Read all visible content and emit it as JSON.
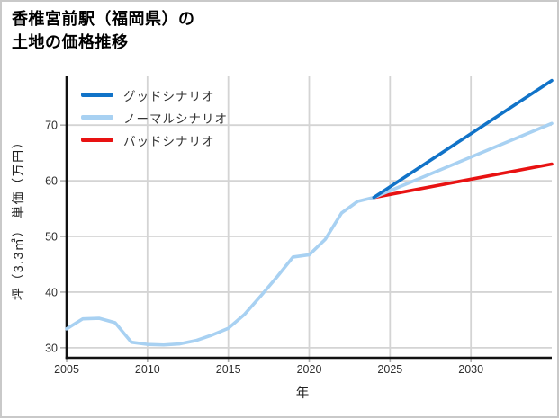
{
  "title": {
    "line1": "香椎宮前駅（福岡県）の",
    "line2": "土地の価格推移"
  },
  "axes": {
    "x_label": "年",
    "y_label": "坪（3.3㎡） 単価（万円）"
  },
  "colors": {
    "good": "#1173c8",
    "normal": "#a8d1f2",
    "bad": "#e81212",
    "grid": "#d4d4d4",
    "axis": "#111111",
    "tick": "#b0b0b0",
    "tick_text": "#2e2e2e",
    "border": "#c9c9c9",
    "background": "#ffffff"
  },
  "chart_data": {
    "type": "line",
    "title": "香椎宮前駅（福岡県）の土地の価格推移",
    "xlabel": "年",
    "ylabel": "坪（3.3㎡） 単価（万円）",
    "xticks": [
      2005,
      2010,
      2015,
      2020,
      2025,
      2030
    ],
    "yticks": [
      30,
      40,
      50,
      60,
      70
    ],
    "xlim": [
      2005,
      2035
    ],
    "ylim": [
      28.2,
      78.75
    ],
    "grid": true,
    "legend_position": "upper-left",
    "series": [
      {
        "name": "グッドシナリオ",
        "color": "#1173c8",
        "x": [
          2024,
          2035
        ],
        "values": [
          57.0,
          78.0
        ]
      },
      {
        "name": "ノーマルシナリオ",
        "color": "#a8d1f2",
        "x": [
          2005,
          2006,
          2007,
          2008,
          2009,
          2010,
          2011,
          2012,
          2013,
          2014,
          2015,
          2016,
          2017,
          2018,
          2019,
          2020,
          2021,
          2022,
          2023,
          2024,
          2035
        ],
        "values": [
          33.4,
          35.2,
          35.3,
          34.5,
          31.0,
          30.6,
          30.5,
          30.7,
          31.3,
          32.3,
          33.5,
          36.0,
          39.3,
          42.7,
          46.3,
          46.7,
          49.5,
          54.2,
          56.3,
          57.0,
          70.3
        ]
      },
      {
        "name": "バッドシナリオ",
        "color": "#e81212",
        "x": [
          2024,
          2035
        ],
        "values": [
          57.0,
          63.0
        ]
      }
    ]
  }
}
